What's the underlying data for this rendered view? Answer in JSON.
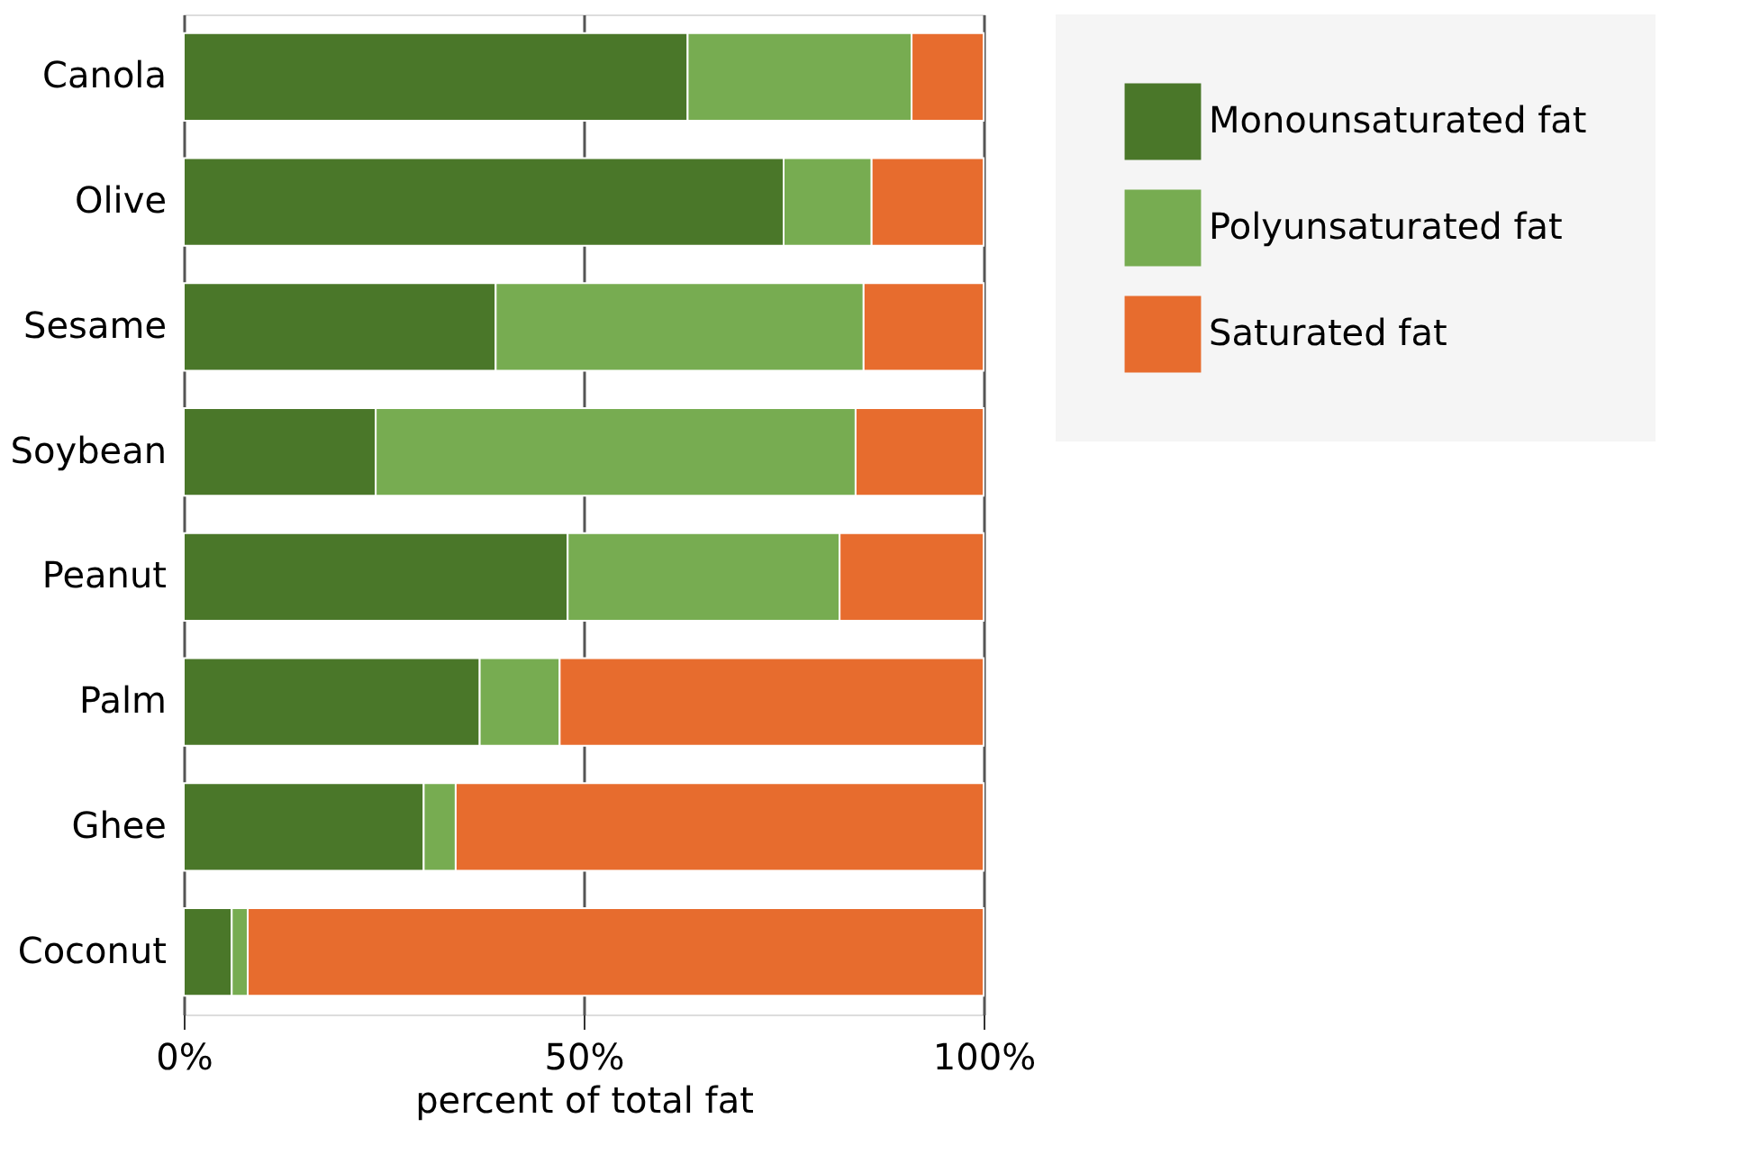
{
  "chart_data": {
    "type": "bar",
    "orientation": "horizontal",
    "stacked": true,
    "xlabel": "percent of total fat",
    "categories": [
      "Canola",
      "Olive",
      "Sesame",
      "Soybean",
      "Peanut",
      "Palm",
      "Ghee",
      "Coconut"
    ],
    "series": [
      {
        "name": "Monounsaturated fat",
        "color": "#4a7729",
        "values": [
          63,
          75,
          39,
          24,
          48,
          37,
          30,
          6
        ]
      },
      {
        "name": "Polyunsaturated fat",
        "color": "#77ac51",
        "values": [
          28,
          11,
          46,
          60,
          34,
          10,
          4,
          2
        ]
      },
      {
        "name": "Saturated fat",
        "color": "#e76c2e",
        "values": [
          9,
          14,
          15,
          16,
          18,
          53,
          66,
          92
        ]
      }
    ],
    "xlim": [
      0,
      100
    ],
    "xticks": [
      {
        "value": 0,
        "label": "0%"
      },
      {
        "value": 50,
        "label": "50%"
      },
      {
        "value": 100,
        "label": "100%"
      }
    ],
    "grid": "x",
    "legend": "right"
  }
}
